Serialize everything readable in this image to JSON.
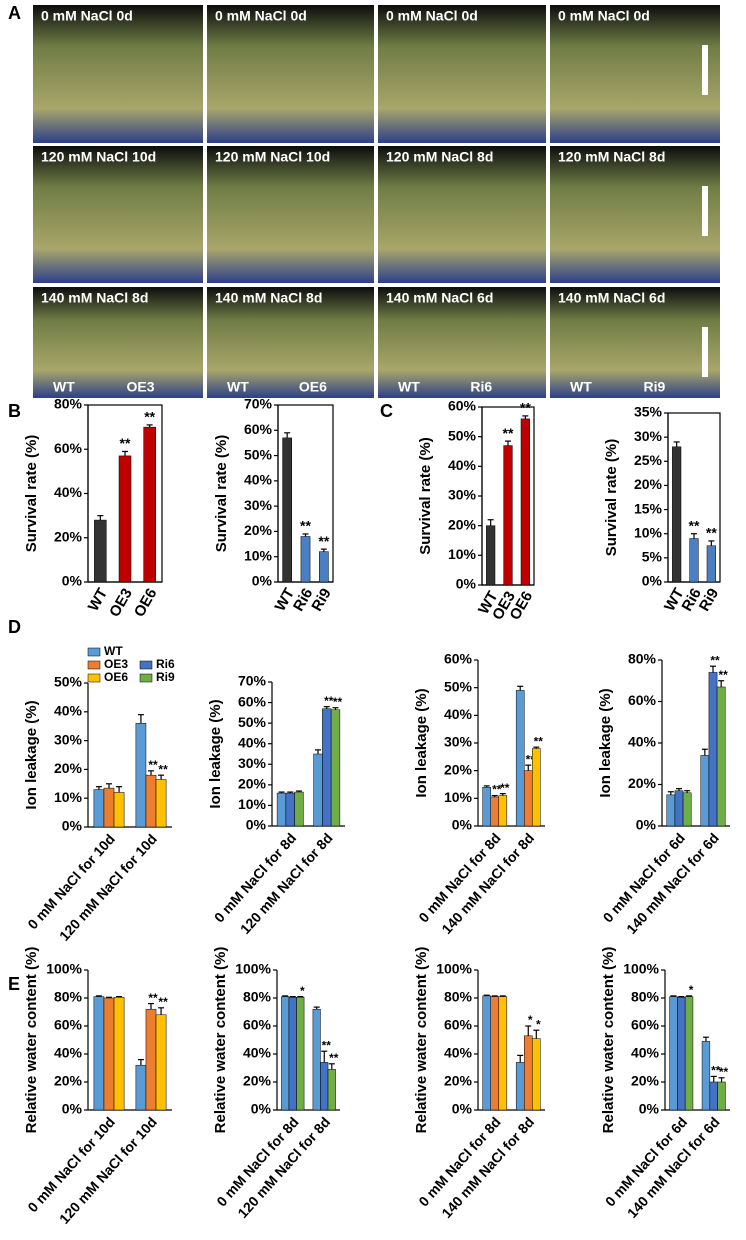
{
  "panel_labels": [
    "A",
    "B",
    "C",
    "D",
    "E"
  ],
  "photos": {
    "rows": [
      [
        "0 mM NaCl 0d",
        "0 mM NaCl 0d",
        "0 mM NaCl 0d",
        "0 mM NaCl 0d"
      ],
      [
        "120 mM NaCl 10d",
        "120 mM NaCl 10d",
        "120 mM NaCl 8d",
        "120 mM NaCl 8d"
      ],
      [
        "140 mM NaCl 8d",
        "140 mM NaCl 8d",
        "140 mM NaCl 6d",
        "140 mM NaCl 6d"
      ]
    ],
    "genotypes": [
      [
        "WT",
        "OE3"
      ],
      [
        "WT",
        "OE6"
      ],
      [
        "WT",
        "Ri6"
      ],
      [
        "WT",
        "Ri9"
      ]
    ]
  },
  "legend": [
    {
      "name": "WT",
      "color": "#5b9bd5"
    },
    {
      "name": "OE3",
      "color": "#ed7d31"
    },
    {
      "name": "OE6",
      "color": "#ffc000"
    },
    {
      "name": "Ri6",
      "color": "#4472c4"
    },
    {
      "name": "Ri9",
      "color": "#70ad47"
    }
  ],
  "chart_data": [
    {
      "type": "bar",
      "frame": true,
      "y_label": "Survival rate (%)",
      "categories": [
        "WT",
        "OE3",
        "OE6"
      ],
      "values": [
        28,
        57,
        70
      ],
      "errors": [
        2,
        2,
        1
      ],
      "annotations": [
        null,
        "**",
        "**"
      ],
      "colors": [
        "#333333",
        "#c00000",
        "#c00000"
      ],
      "ylim": [
        0,
        80
      ],
      "yticks": [
        {
          "value": 0,
          "label": "0%"
        },
        {
          "value": 20,
          "label": "20%"
        },
        {
          "value": 40,
          "label": "40%"
        },
        {
          "value": 60,
          "label": "60%"
        },
        {
          "value": 80,
          "label": "80%"
        }
      ]
    },
    {
      "type": "bar",
      "frame": true,
      "y_label": "Survival rate (%)",
      "categories": [
        "WT",
        "Ri6",
        "Ri9"
      ],
      "values": [
        57,
        18,
        12
      ],
      "errors": [
        2,
        1,
        1
      ],
      "annotations": [
        null,
        "**",
        "**"
      ],
      "colors": [
        "#333333",
        "#4a7fc1",
        "#4a7fc1"
      ],
      "ylim": [
        0,
        70
      ],
      "yticks": [
        {
          "value": 0,
          "label": "0%"
        },
        {
          "value": 10,
          "label": "10%"
        },
        {
          "value": 20,
          "label": "20%"
        },
        {
          "value": 30,
          "label": "30%"
        },
        {
          "value": 40,
          "label": "40%"
        },
        {
          "value": 50,
          "label": "50%"
        },
        {
          "value": 60,
          "label": "60%"
        },
        {
          "value": 70,
          "label": "70%"
        }
      ]
    },
    {
      "type": "bar",
      "frame": true,
      "y_label": "Survival rate (%)",
      "categories": [
        "WT",
        "OE3",
        "OE6"
      ],
      "values": [
        20,
        47,
        56
      ],
      "errors": [
        2,
        1.5,
        1
      ],
      "annotations": [
        null,
        "**",
        "**"
      ],
      "colors": [
        "#333333",
        "#c00000",
        "#c00000"
      ],
      "ylim": [
        0,
        60
      ],
      "yticks": [
        {
          "value": 0,
          "label": "0%"
        },
        {
          "value": 10,
          "label": "10%"
        },
        {
          "value": 20,
          "label": "20%"
        },
        {
          "value": 30,
          "label": "30%"
        },
        {
          "value": 40,
          "label": "40%"
        },
        {
          "value": 50,
          "label": "50%"
        },
        {
          "value": 60,
          "label": "60%"
        }
      ]
    },
    {
      "type": "bar",
      "frame": true,
      "y_label": "Survival rate (%)",
      "categories": [
        "WT",
        "Ri6",
        "Ri9"
      ],
      "values": [
        28,
        9,
        7.5
      ],
      "errors": [
        1,
        1,
        1
      ],
      "annotations": [
        null,
        "**",
        "**"
      ],
      "colors": [
        "#333333",
        "#4a7fc1",
        "#4a7fc1"
      ],
      "ylim": [
        0,
        35
      ],
      "yticks": [
        {
          "value": 0,
          "label": "0%"
        },
        {
          "value": 5,
          "label": "5%"
        },
        {
          "value": 10,
          "label": "10%"
        },
        {
          "value": 15,
          "label": "15%"
        },
        {
          "value": 20,
          "label": "20%"
        },
        {
          "value": 25,
          "label": "25%"
        },
        {
          "value": 30,
          "label": "30%"
        },
        {
          "value": 35,
          "label": "35%"
        }
      ]
    },
    {
      "type": "grouped_bar",
      "y_label": "Ion leakage (%)",
      "categories": [
        "0 mM NaCl for 10d",
        "120 mM NaCl for 10d"
      ],
      "series": [
        {
          "color": "#5b9bd5",
          "values": [
            13,
            36
          ],
          "errors": [
            1,
            3
          ],
          "annotations": [
            null,
            null
          ]
        },
        {
          "color": "#ed7d31",
          "values": [
            13.5,
            18
          ],
          "errors": [
            1.5,
            1.5
          ],
          "annotations": [
            null,
            "**"
          ]
        },
        {
          "color": "#ffc000",
          "values": [
            12,
            16.5
          ],
          "errors": [
            2,
            1.5
          ],
          "annotations": [
            null,
            "**"
          ]
        }
      ],
      "ylim": [
        0,
        50
      ],
      "yticks": [
        {
          "value": 0,
          "label": "0%"
        },
        {
          "value": 10,
          "label": "10%"
        },
        {
          "value": 20,
          "label": "20%"
        },
        {
          "value": 30,
          "label": "30%"
        },
        {
          "value": 40,
          "label": "40%"
        },
        {
          "value": 50,
          "label": "50%"
        }
      ]
    },
    {
      "type": "grouped_bar",
      "y_label": "Ion leakage (%)",
      "categories": [
        "0 mM NaCl for 8d",
        "120 mM NaCl for 8d"
      ],
      "series": [
        {
          "color": "#5b9bd5",
          "values": [
            16,
            35
          ],
          "errors": [
            0.5,
            2
          ],
          "annotations": [
            null,
            null
          ]
        },
        {
          "color": "#4472c4",
          "values": [
            16,
            57
          ],
          "errors": [
            0.5,
            1
          ],
          "annotations": [
            null,
            "**"
          ]
        },
        {
          "color": "#70ad47",
          "values": [
            16.5,
            56.5
          ],
          "errors": [
            0.5,
            1
          ],
          "annotations": [
            null,
            "**"
          ]
        }
      ],
      "ylim": [
        0,
        70
      ],
      "yticks": [
        {
          "value": 0,
          "label": "0%"
        },
        {
          "value": 10,
          "label": "10%"
        },
        {
          "value": 20,
          "label": "20%"
        },
        {
          "value": 30,
          "label": "30%"
        },
        {
          "value": 40,
          "label": "40%"
        },
        {
          "value": 50,
          "label": "50%"
        },
        {
          "value": 60,
          "label": "60%"
        },
        {
          "value": 70,
          "label": "70%"
        }
      ]
    },
    {
      "type": "grouped_bar",
      "y_label": "Ion leakage (%)",
      "categories": [
        "0 mM NaCl for 8d",
        "140 mM NaCl for 8d"
      ],
      "series": [
        {
          "color": "#5b9bd5",
          "values": [
            14,
            49
          ],
          "errors": [
            0.5,
            1.5
          ],
          "annotations": [
            null,
            null
          ]
        },
        {
          "color": "#ed7d31",
          "values": [
            10.5,
            20
          ],
          "errors": [
            0.5,
            2
          ],
          "annotations": [
            "**",
            "**"
          ]
        },
        {
          "color": "#ffc000",
          "values": [
            11,
            28
          ],
          "errors": [
            0.7,
            0.5
          ],
          "annotations": [
            "**",
            "**"
          ]
        }
      ],
      "ylim": [
        0,
        60
      ],
      "yticks": [
        {
          "value": 0,
          "label": "0%"
        },
        {
          "value": 10,
          "label": "10%"
        },
        {
          "value": 20,
          "label": "20%"
        },
        {
          "value": 30,
          "label": "30%"
        },
        {
          "value": 40,
          "label": "40%"
        },
        {
          "value": 50,
          "label": "50%"
        },
        {
          "value": 60,
          "label": "60%"
        }
      ]
    },
    {
      "type": "grouped_bar",
      "y_label": "Ion leakage (%)",
      "categories": [
        "0 mM NaCl for 6d",
        "140 mM NaCl for 6d"
      ],
      "series": [
        {
          "color": "#5b9bd5",
          "values": [
            15,
            34
          ],
          "errors": [
            1.5,
            3
          ],
          "annotations": [
            null,
            null
          ]
        },
        {
          "color": "#4472c4",
          "values": [
            17,
            74
          ],
          "errors": [
            1,
            3
          ],
          "annotations": [
            null,
            "**"
          ]
        },
        {
          "color": "#70ad47",
          "values": [
            16,
            67
          ],
          "errors": [
            1,
            3
          ],
          "annotations": [
            null,
            "**"
          ]
        }
      ],
      "ylim": [
        0,
        80
      ],
      "yticks": [
        {
          "value": 0,
          "label": "0%"
        },
        {
          "value": 20,
          "label": "20%"
        },
        {
          "value": 40,
          "label": "40%"
        },
        {
          "value": 60,
          "label": "60%"
        },
        {
          "value": 80,
          "label": "80%"
        }
      ]
    },
    {
      "type": "grouped_bar",
      "y_label": "Relative water content (%)",
      "categories": [
        "0 mM NaCl for 10d",
        "120 mM NaCl for 10d"
      ],
      "series": [
        {
          "color": "#5b9bd5",
          "values": [
            81,
            32
          ],
          "errors": [
            0.5,
            4
          ],
          "annotations": [
            null,
            null
          ]
        },
        {
          "color": "#ed7d31",
          "values": [
            80,
            72
          ],
          "errors": [
            0.5,
            4
          ],
          "annotations": [
            null,
            "**"
          ]
        },
        {
          "color": "#ffc000",
          "values": [
            80.5,
            68
          ],
          "errors": [
            0.5,
            5
          ],
          "annotations": [
            null,
            "**"
          ]
        }
      ],
      "ylim": [
        0,
        100
      ],
      "yticks": [
        {
          "value": 0,
          "label": "0%"
        },
        {
          "value": 20,
          "label": "20%"
        },
        {
          "value": 40,
          "label": "40%"
        },
        {
          "value": 60,
          "label": "60%"
        },
        {
          "value": 80,
          "label": "80%"
        },
        {
          "value": 100,
          "label": "100%"
        }
      ]
    },
    {
      "type": "grouped_bar",
      "y_label": "Relative water content (%)",
      "categories": [
        "0 mM NaCl for 8d",
        "120 mM NaCl for 8d"
      ],
      "series": [
        {
          "color": "#5b9bd5",
          "values": [
            81,
            72
          ],
          "errors": [
            0.5,
            1.5
          ],
          "annotations": [
            null,
            null
          ]
        },
        {
          "color": "#4472c4",
          "values": [
            80.5,
            34
          ],
          "errors": [
            0.5,
            8
          ],
          "annotations": [
            null,
            "**"
          ]
        },
        {
          "color": "#70ad47",
          "values": [
            80.5,
            29
          ],
          "errors": [
            0.5,
            4
          ],
          "annotations": [
            "*",
            "**"
          ]
        }
      ],
      "ylim": [
        0,
        100
      ],
      "yticks": [
        {
          "value": 0,
          "label": "0%"
        },
        {
          "value": 20,
          "label": "20%"
        },
        {
          "value": 40,
          "label": "40%"
        },
        {
          "value": 60,
          "label": "60%"
        },
        {
          "value": 80,
          "label": "80%"
        },
        {
          "value": 100,
          "label": "100%"
        }
      ]
    },
    {
      "type": "grouped_bar",
      "y_label": "Relative water content (%)",
      "categories": [
        "0 mM NaCl for 8d",
        "140 mM NaCl for 8d"
      ],
      "series": [
        {
          "color": "#5b9bd5",
          "values": [
            81.5,
            34
          ],
          "errors": [
            0.5,
            5
          ],
          "annotations": [
            null,
            null
          ]
        },
        {
          "color": "#ed7d31",
          "values": [
            81,
            53
          ],
          "errors": [
            0.5,
            7
          ],
          "annotations": [
            null,
            "*"
          ]
        },
        {
          "color": "#ffc000",
          "values": [
            81,
            51
          ],
          "errors": [
            0.5,
            6
          ],
          "annotations": [
            null,
            "*"
          ]
        }
      ],
      "ylim": [
        0,
        100
      ],
      "yticks": [
        {
          "value": 0,
          "label": "0%"
        },
        {
          "value": 20,
          "label": "20%"
        },
        {
          "value": 40,
          "label": "40%"
        },
        {
          "value": 60,
          "label": "60%"
        },
        {
          "value": 80,
          "label": "80%"
        },
        {
          "value": 100,
          "label": "100%"
        }
      ]
    },
    {
      "type": "grouped_bar",
      "y_label": "Relative water content (%)",
      "categories": [
        "0 mM NaCl for 6d",
        "140 mM NaCl for 6d"
      ],
      "series": [
        {
          "color": "#5b9bd5",
          "values": [
            81,
            49
          ],
          "errors": [
            0.5,
            3
          ],
          "annotations": [
            null,
            null
          ]
        },
        {
          "color": "#4472c4",
          "values": [
            80.5,
            20
          ],
          "errors": [
            0.5,
            4
          ],
          "annotations": [
            null,
            "**"
          ]
        },
        {
          "color": "#70ad47",
          "values": [
            81,
            20
          ],
          "errors": [
            0.5,
            3
          ],
          "annotations": [
            "*",
            "**"
          ]
        }
      ],
      "ylim": [
        0,
        100
      ],
      "yticks": [
        {
          "value": 0,
          "label": "0%"
        },
        {
          "value": 20,
          "label": "20%"
        },
        {
          "value": 40,
          "label": "40%"
        },
        {
          "value": 60,
          "label": "60%"
        },
        {
          "value": 80,
          "label": "80%"
        },
        {
          "value": 100,
          "label": "100%"
        }
      ]
    }
  ]
}
